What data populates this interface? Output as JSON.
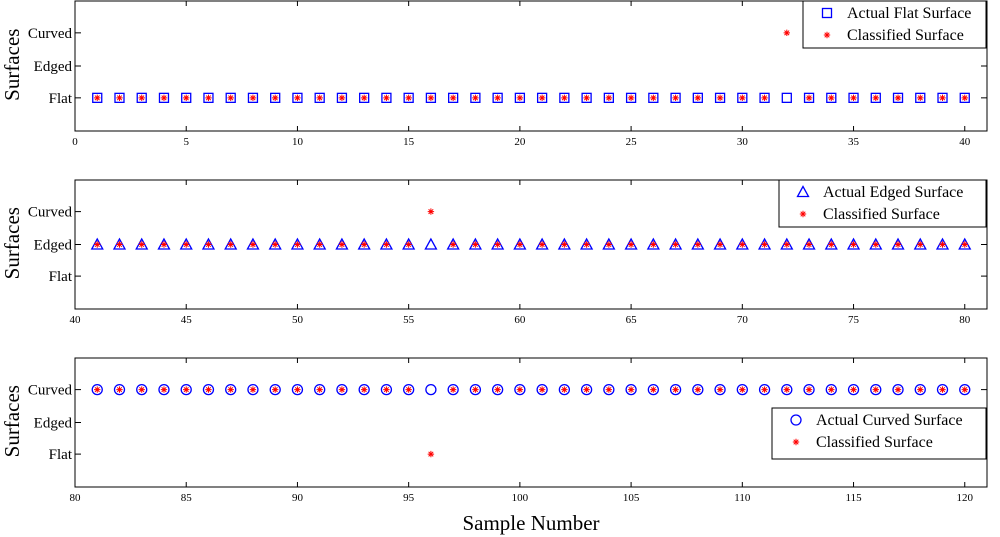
{
  "chart_data": [
    {
      "type": "scatter",
      "ylabel": "Surfaces",
      "xlabel": "",
      "xlim": [
        0,
        41
      ],
      "xticks": [
        0,
        5,
        10,
        15,
        20,
        25,
        30,
        35,
        40
      ],
      "ycategories": [
        "Flat",
        "Edged",
        "Curved"
      ],
      "legend_position": "top-right",
      "series": [
        {
          "name": "Actual Flat Surface",
          "marker": "square",
          "color": "#0000ff",
          "x": [
            1,
            2,
            3,
            4,
            5,
            6,
            7,
            8,
            9,
            10,
            11,
            12,
            13,
            14,
            15,
            16,
            17,
            18,
            19,
            20,
            21,
            22,
            23,
            24,
            25,
            26,
            27,
            28,
            29,
            30,
            31,
            32,
            33,
            34,
            35,
            36,
            37,
            38,
            39,
            40
          ],
          "y": [
            "Flat",
            "Flat",
            "Flat",
            "Flat",
            "Flat",
            "Flat",
            "Flat",
            "Flat",
            "Flat",
            "Flat",
            "Flat",
            "Flat",
            "Flat",
            "Flat",
            "Flat",
            "Flat",
            "Flat",
            "Flat",
            "Flat",
            "Flat",
            "Flat",
            "Flat",
            "Flat",
            "Flat",
            "Flat",
            "Flat",
            "Flat",
            "Flat",
            "Flat",
            "Flat",
            "Flat",
            "Flat",
            "Flat",
            "Flat",
            "Flat",
            "Flat",
            "Flat",
            "Flat",
            "Flat",
            "Flat"
          ]
        },
        {
          "name": "Classified Surface",
          "marker": "star",
          "color": "#ff0000",
          "x": [
            1,
            2,
            3,
            4,
            5,
            6,
            7,
            8,
            9,
            10,
            11,
            12,
            13,
            14,
            15,
            16,
            17,
            18,
            19,
            20,
            21,
            22,
            23,
            24,
            25,
            26,
            27,
            28,
            29,
            30,
            31,
            32,
            33,
            34,
            35,
            36,
            37,
            38,
            39,
            40
          ],
          "y": [
            "Flat",
            "Flat",
            "Flat",
            "Flat",
            "Flat",
            "Flat",
            "Flat",
            "Flat",
            "Flat",
            "Flat",
            "Flat",
            "Flat",
            "Flat",
            "Flat",
            "Flat",
            "Flat",
            "Flat",
            "Flat",
            "Flat",
            "Flat",
            "Flat",
            "Flat",
            "Flat",
            "Flat",
            "Flat",
            "Flat",
            "Flat",
            "Flat",
            "Flat",
            "Flat",
            "Flat",
            "Curved",
            "Flat",
            "Flat",
            "Flat",
            "Flat",
            "Flat",
            "Flat",
            "Flat",
            "Flat"
          ]
        }
      ]
    },
    {
      "type": "scatter",
      "ylabel": "Surfaces",
      "xlabel": "",
      "xlim": [
        40,
        81
      ],
      "xticks": [
        40,
        45,
        50,
        55,
        60,
        65,
        70,
        75,
        80
      ],
      "ycategories": [
        "Flat",
        "Edged",
        "Curved"
      ],
      "legend_position": "top-right",
      "series": [
        {
          "name": "Actual Edged Surface",
          "marker": "triangle",
          "color": "#0000ff",
          "x": [
            41,
            42,
            43,
            44,
            45,
            46,
            47,
            48,
            49,
            50,
            51,
            52,
            53,
            54,
            55,
            56,
            57,
            58,
            59,
            60,
            61,
            62,
            63,
            64,
            65,
            66,
            67,
            68,
            69,
            70,
            71,
            72,
            73,
            74,
            75,
            76,
            77,
            78,
            79,
            80
          ],
          "y": [
            "Edged",
            "Edged",
            "Edged",
            "Edged",
            "Edged",
            "Edged",
            "Edged",
            "Edged",
            "Edged",
            "Edged",
            "Edged",
            "Edged",
            "Edged",
            "Edged",
            "Edged",
            "Edged",
            "Edged",
            "Edged",
            "Edged",
            "Edged",
            "Edged",
            "Edged",
            "Edged",
            "Edged",
            "Edged",
            "Edged",
            "Edged",
            "Edged",
            "Edged",
            "Edged",
            "Edged",
            "Edged",
            "Edged",
            "Edged",
            "Edged",
            "Edged",
            "Edged",
            "Edged",
            "Edged",
            "Edged"
          ]
        },
        {
          "name": "Classified Surface",
          "marker": "star",
          "color": "#ff0000",
          "x": [
            41,
            42,
            43,
            44,
            45,
            46,
            47,
            48,
            49,
            50,
            51,
            52,
            53,
            54,
            55,
            56,
            57,
            58,
            59,
            60,
            61,
            62,
            63,
            64,
            65,
            66,
            67,
            68,
            69,
            70,
            71,
            72,
            73,
            74,
            75,
            76,
            77,
            78,
            79,
            80
          ],
          "y": [
            "Edged",
            "Edged",
            "Edged",
            "Edged",
            "Edged",
            "Edged",
            "Edged",
            "Edged",
            "Edged",
            "Edged",
            "Edged",
            "Edged",
            "Edged",
            "Edged",
            "Edged",
            "Curved",
            "Edged",
            "Edged",
            "Edged",
            "Edged",
            "Edged",
            "Edged",
            "Edged",
            "Edged",
            "Edged",
            "Edged",
            "Edged",
            "Edged",
            "Edged",
            "Edged",
            "Edged",
            "Edged",
            "Edged",
            "Edged",
            "Edged",
            "Edged",
            "Edged",
            "Edged",
            "Edged",
            "Edged"
          ]
        }
      ]
    },
    {
      "type": "scatter",
      "ylabel": "Surfaces",
      "xlabel": "Sample Number",
      "xlim": [
        80,
        121
      ],
      "xticks": [
        80,
        85,
        90,
        95,
        100,
        105,
        110,
        115,
        120
      ],
      "ycategories": [
        "Flat",
        "Edged",
        "Curved"
      ],
      "legend_position": "right",
      "series": [
        {
          "name": "Actual Curved Surface",
          "marker": "circle",
          "color": "#0000ff",
          "x": [
            81,
            82,
            83,
            84,
            85,
            86,
            87,
            88,
            89,
            90,
            91,
            92,
            93,
            94,
            95,
            96,
            97,
            98,
            99,
            100,
            101,
            102,
            103,
            104,
            105,
            106,
            107,
            108,
            109,
            110,
            111,
            112,
            113,
            114,
            115,
            116,
            117,
            118,
            119,
            120
          ],
          "y": [
            "Curved",
            "Curved",
            "Curved",
            "Curved",
            "Curved",
            "Curved",
            "Curved",
            "Curved",
            "Curved",
            "Curved",
            "Curved",
            "Curved",
            "Curved",
            "Curved",
            "Curved",
            "Curved",
            "Curved",
            "Curved",
            "Curved",
            "Curved",
            "Curved",
            "Curved",
            "Curved",
            "Curved",
            "Curved",
            "Curved",
            "Curved",
            "Curved",
            "Curved",
            "Curved",
            "Curved",
            "Curved",
            "Curved",
            "Curved",
            "Curved",
            "Curved",
            "Curved",
            "Curved",
            "Curved",
            "Curved"
          ]
        },
        {
          "name": "Classified Surface",
          "marker": "star",
          "color": "#ff0000",
          "x": [
            81,
            82,
            83,
            84,
            85,
            86,
            87,
            88,
            89,
            90,
            91,
            92,
            93,
            94,
            95,
            96,
            97,
            98,
            99,
            100,
            101,
            102,
            103,
            104,
            105,
            106,
            107,
            108,
            109,
            110,
            111,
            112,
            113,
            114,
            115,
            116,
            117,
            118,
            119,
            120
          ],
          "y": [
            "Curved",
            "Curved",
            "Curved",
            "Curved",
            "Curved",
            "Curved",
            "Curved",
            "Curved",
            "Curved",
            "Curved",
            "Curved",
            "Curved",
            "Curved",
            "Curved",
            "Curved",
            "Flat",
            "Curved",
            "Curved",
            "Curved",
            "Curved",
            "Curved",
            "Curved",
            "Curved",
            "Curved",
            "Curved",
            "Curved",
            "Curved",
            "Curved",
            "Curved",
            "Curved",
            "Curved",
            "Curved",
            "Curved",
            "Curved",
            "Curved",
            "Curved",
            "Curved",
            "Curved",
            "Curved",
            "Curved"
          ]
        }
      ]
    }
  ]
}
